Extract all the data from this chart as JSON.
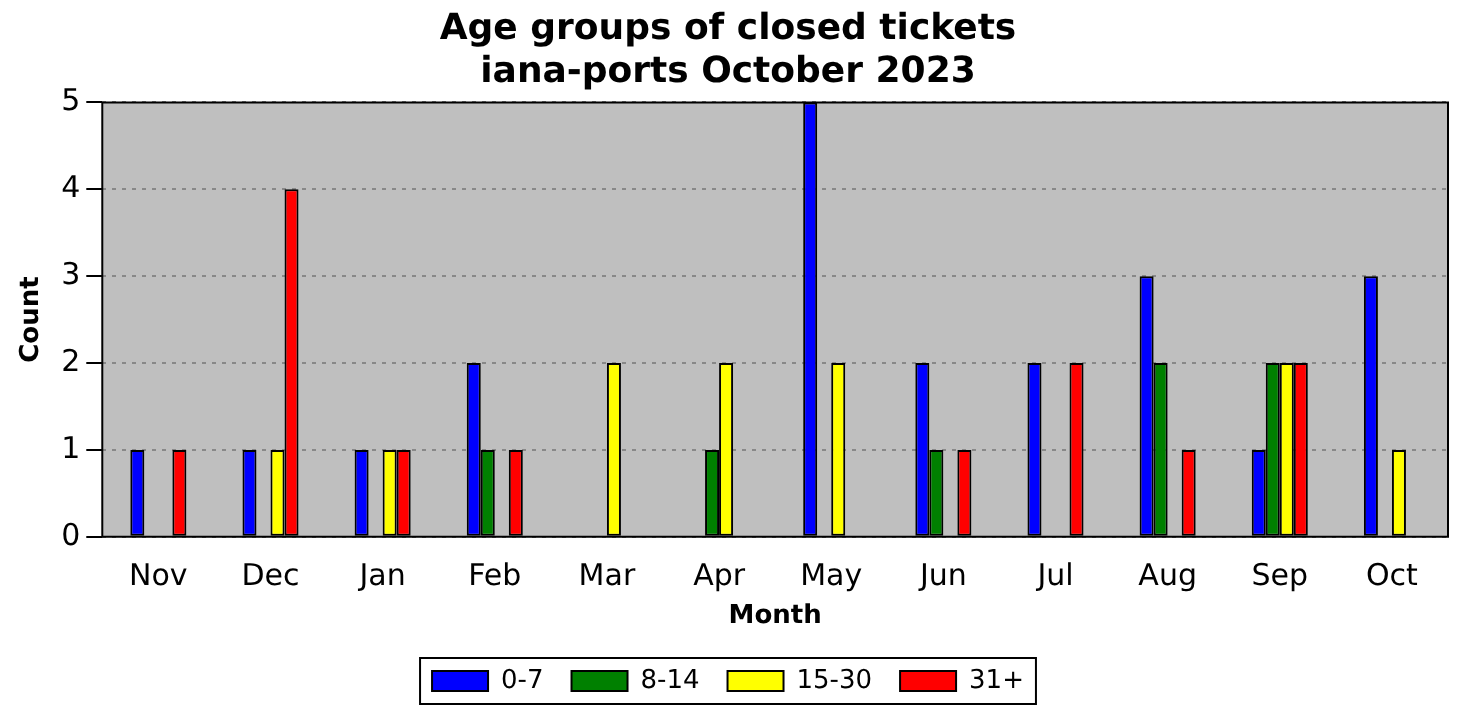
{
  "chart_data": {
    "type": "bar",
    "title": "Age groups of closed tickets\niana-ports October 2023",
    "xlabel": "Month",
    "ylabel": "Count",
    "categories": [
      "Nov",
      "Dec",
      "Jan",
      "Feb",
      "Mar",
      "Apr",
      "May",
      "Jun",
      "Jul",
      "Aug",
      "Sep",
      "Oct"
    ],
    "series": [
      {
        "name": "0-7",
        "color": "#0000ff",
        "values": [
          1,
          1,
          1,
          2,
          0,
          0,
          5,
          2,
          2,
          3,
          1,
          3
        ]
      },
      {
        "name": "8-14",
        "color": "#008000",
        "values": [
          0,
          0,
          0,
          1,
          0,
          1,
          0,
          1,
          0,
          2,
          2,
          0
        ]
      },
      {
        "name": "15-30",
        "color": "#ffff00",
        "values": [
          0,
          1,
          1,
          0,
          2,
          2,
          2,
          0,
          0,
          0,
          2,
          1
        ]
      },
      {
        "name": "31+",
        "color": "#ff0000",
        "values": [
          1,
          4,
          1,
          1,
          0,
          0,
          0,
          1,
          2,
          1,
          2,
          0
        ]
      }
    ],
    "ylim": [
      0,
      5
    ],
    "yticks": [
      0,
      1,
      2,
      3,
      4,
      5
    ],
    "grid": "y",
    "legend": "bottom"
  }
}
